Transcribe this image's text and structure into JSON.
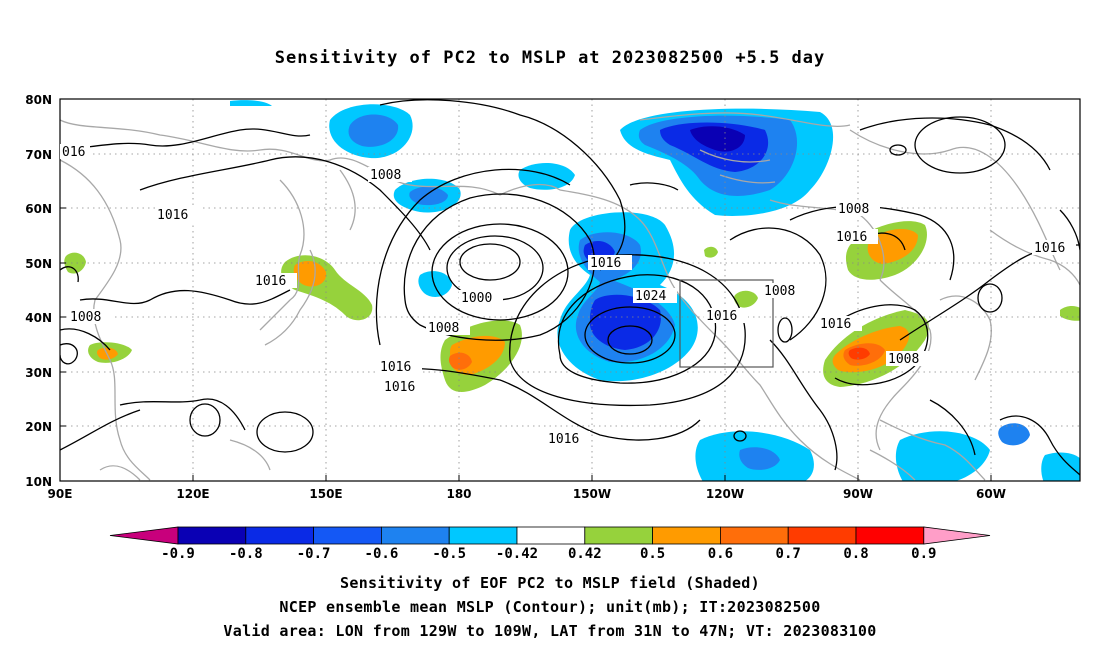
{
  "title": "Sensitivity of PC2 to MSLP at 2023082500 +5.5 day",
  "lat_ticks": [
    "80N",
    "70N",
    "60N",
    "50N",
    "40N",
    "30N",
    "20N",
    "10N"
  ],
  "lon_ticks": [
    "90E",
    "120E",
    "150E",
    "180",
    "150W",
    "120W",
    "90W",
    "60W"
  ],
  "contour_labels": [
    "016",
    "1008",
    "1016",
    "1016",
    "1000",
    "1008",
    "1016",
    "1016",
    "1008",
    "1016",
    "1024",
    "1016",
    "1008",
    "1016",
    "1008",
    "1016",
    "1016",
    "1008",
    "1016"
  ],
  "colorbar": {
    "labels": [
      "-0.9",
      "-0.8",
      "-0.7",
      "-0.6",
      "-0.5",
      "-0.42",
      "0.42",
      "0.5",
      "0.6",
      "0.7",
      "0.8",
      "0.9"
    ],
    "colors": [
      "#0a00b4",
      "#0a2ae6",
      "#1458f5",
      "#1e82f0",
      "#00c8ff",
      "#ffffff",
      "#96d23c",
      "#ff9b00",
      "#ff6e0a",
      "#ff3c00",
      "#ff0000"
    ],
    "low_end_color": "#c8007c",
    "high_end_color": "#ff9ec8"
  },
  "captions": [
    "Sensitivity of EOF PC2 to MSLP field (Shaded)",
    "NCEP ensemble mean MSLP (Contour); unit(mb); IT:2023082500",
    "Valid area: LON from 129W to 109W, LAT from 31N to 47N; VT: 2023083100"
  ]
}
